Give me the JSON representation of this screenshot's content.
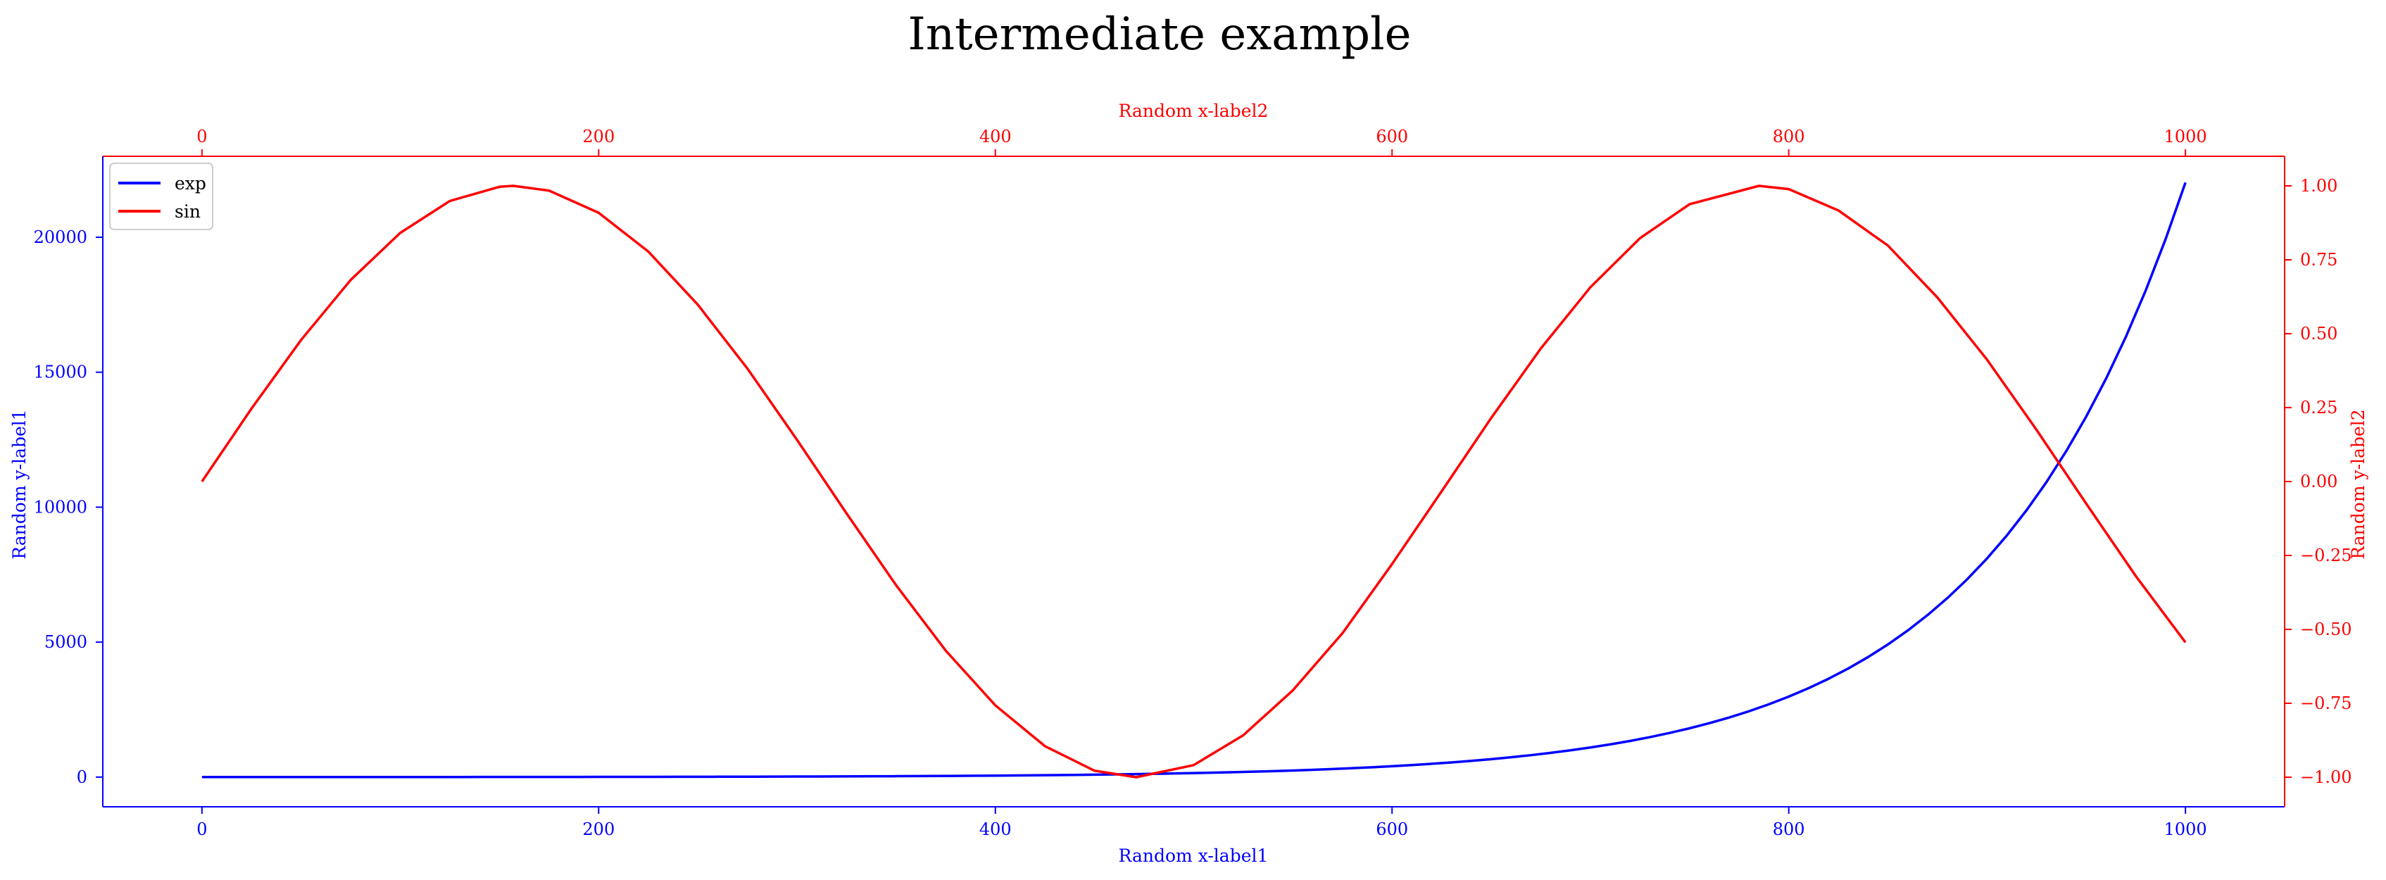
{
  "chart_data": {
    "type": "line",
    "title": "Intermediate example",
    "colors": {
      "primary": "#0000ff",
      "secondary": "#ff0000"
    },
    "grid": false,
    "legend": {
      "placement": "upper-left",
      "entries": [
        "exp",
        "sin"
      ]
    },
    "axes": {
      "x_bottom": {
        "label": "Random x-label1",
        "range": [
          -50,
          1050
        ],
        "ticks": [
          0,
          200,
          400,
          600,
          800,
          1000
        ],
        "tick_labels": [
          "0",
          "200",
          "400",
          "600",
          "800",
          "1000"
        ],
        "color": "#0000ff"
      },
      "x_top": {
        "label": "Random x-label2",
        "range": [
          -50,
          1050
        ],
        "ticks": [
          0,
          200,
          400,
          600,
          800,
          1000
        ],
        "tick_labels": [
          "0",
          "200",
          "400",
          "600",
          "800",
          "1000"
        ],
        "color": "#ff0000"
      },
      "y_left": {
        "label": "Random y-label1",
        "range": [
          -1100,
          23000
        ],
        "ticks": [
          0,
          5000,
          10000,
          15000,
          20000
        ],
        "tick_labels": [
          "0",
          "5000",
          "10000",
          "15000",
          "20000"
        ],
        "color": "#0000ff"
      },
      "y_right": {
        "label": "Random y-label2",
        "range": [
          -1.1,
          1.1
        ],
        "ticks": [
          -1.0,
          -0.75,
          -0.5,
          -0.25,
          0.0,
          0.25,
          0.5,
          0.75,
          1.0
        ],
        "tick_labels": [
          "−1.00",
          "−0.75",
          "−0.50",
          "−0.25",
          "0.00",
          "0.25",
          "0.50",
          "0.75",
          "1.00"
        ],
        "color": "#ff0000"
      }
    },
    "series": [
      {
        "name": "exp",
        "axis": "left",
        "color": "#0000ff",
        "x": [
          0,
          100,
          200,
          300,
          400,
          500,
          550,
          600,
          650,
          700,
          750,
          800,
          850,
          900,
          950,
          1000
        ],
        "y": [
          1,
          3,
          7,
          20,
          55,
          148,
          245,
          403,
          665,
          1097,
          1808,
          2981,
          4915,
          8103,
          13360,
          22026
        ]
      },
      {
        "name": "sin",
        "axis": "right",
        "color": "#ff0000",
        "x": [
          0,
          25,
          50,
          75,
          100,
          125,
          150,
          157,
          175,
          200,
          225,
          250,
          275,
          300,
          325,
          350,
          375,
          400,
          425,
          450,
          471,
          500,
          525,
          550,
          575,
          600,
          625,
          650,
          675,
          700,
          725,
          750,
          785,
          800,
          825,
          850,
          875,
          900,
          925,
          950,
          975,
          1000
        ],
        "y": [
          0.0,
          0.247,
          0.479,
          0.682,
          0.841,
          0.949,
          0.997,
          1.0,
          0.984,
          0.909,
          0.778,
          0.598,
          0.382,
          0.141,
          -0.108,
          -0.351,
          -0.572,
          -0.757,
          -0.895,
          -0.978,
          -1.0,
          -0.959,
          -0.858,
          -0.706,
          -0.513,
          -0.279,
          -0.033,
          0.215,
          0.45,
          0.657,
          0.823,
          0.938,
          1.0,
          0.989,
          0.917,
          0.798,
          0.622,
          0.412,
          0.174,
          -0.075,
          -0.32,
          -0.544
        ]
      }
    ]
  }
}
